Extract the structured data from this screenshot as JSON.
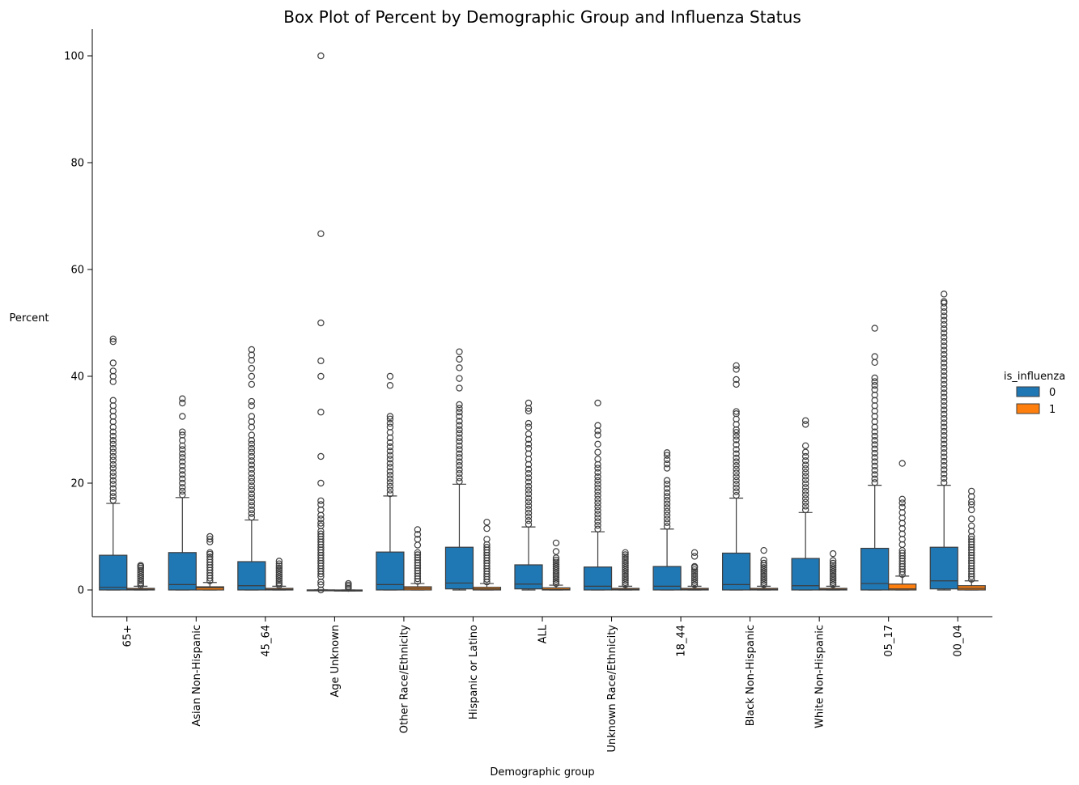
{
  "chart_data": {
    "type": "boxplot",
    "title": "Box Plot of Percent by Demographic Group and Influenza Status",
    "xlabel": "Demographic group",
    "ylabel": "Percent",
    "ylim": [
      -5,
      105
    ],
    "yticks": [
      0,
      20,
      40,
      60,
      80,
      100
    ],
    "grid": false,
    "legend": {
      "title": "is_influenza",
      "position": "right",
      "entries": [
        "0",
        "1"
      ]
    },
    "categories": [
      "65+",
      "Asian Non-Hispanic",
      "45_64",
      "Age Unknown",
      "Other Race/Ethnicity",
      "Hispanic or Latino",
      "ALL",
      "Unknown Race/Ethnicity",
      "18_44",
      "Black Non-Hispanic",
      "White Non-Hispanic",
      "05_17",
      "00_04"
    ],
    "series": [
      {
        "name": "0",
        "color": "#1f77b4",
        "boxes": [
          {
            "q1": 0,
            "median": 0.5,
            "q3": 6.5,
            "whisker_low": 0,
            "whisker_high": 16.2,
            "fliers": [
              16.8,
              17.5,
              18.2,
              19,
              19.8,
              20.5,
              21.3,
              22,
              22.8,
              23.5,
              24.3,
              25,
              25.8,
              26.5,
              27.3,
              28,
              28.8,
              29.6,
              30.5,
              31.5,
              32.5,
              33.5,
              34.5,
              35.5,
              39,
              40,
              41,
              42.5,
              46.5,
              47
            ]
          },
          {
            "q1": 0,
            "median": 1,
            "q3": 7,
            "whisker_low": 0,
            "whisker_high": 17.3,
            "fliers": [
              17.8,
              18.5,
              19.2,
              20,
              20.8,
              21.6,
              22.4,
              23.2,
              24,
              24.8,
              25.5,
              26.3,
              27,
              28,
              29,
              29.6,
              32.5,
              35,
              35.8
            ]
          },
          {
            "q1": 0,
            "median": 0.8,
            "q3": 5.3,
            "whisker_low": 0,
            "whisker_high": 13.1,
            "fliers": [
              13.6,
              14.3,
              15,
              15.8,
              16.5,
              17.3,
              18,
              18.8,
              19.5,
              20.3,
              21,
              21.8,
              22.6,
              23.4,
              24.2,
              25,
              25.8,
              26.5,
              27.3,
              28,
              29,
              30.5,
              31.5,
              32.5,
              34.5,
              35.3,
              38.5,
              40,
              41.5,
              43,
              44,
              45
            ]
          },
          {
            "q1": 0,
            "median": 0,
            "q3": 0,
            "whisker_low": 0,
            "whisker_high": 0,
            "fliers": [
              0,
              1,
              1.5,
              2.5,
              3,
              3.5,
              4,
              4.5,
              5,
              5.5,
              6,
              6.5,
              7,
              7.5,
              8,
              8.5,
              9,
              9.5,
              10,
              10.5,
              11,
              12,
              12.5,
              13.3,
              14,
              15,
              16,
              16.7,
              20,
              25,
              33.3,
              40,
              42.9,
              50,
              66.7,
              100
            ]
          },
          {
            "q1": 0,
            "median": 1,
            "q3": 7.1,
            "whisker_low": 0,
            "whisker_high": 17.6,
            "fliers": [
              18,
              18.7,
              19.4,
              20.1,
              20.8,
              21.5,
              22.2,
              23,
              23.7,
              24.5,
              25.2,
              26,
              26.8,
              27.6,
              28.5,
              29.5,
              30.5,
              31.2,
              32,
              32.5,
              38.3,
              40
            ]
          },
          {
            "q1": 0.2,
            "median": 1.3,
            "q3": 8,
            "whisker_low": 0,
            "whisker_high": 19.8,
            "fliers": [
              20.3,
              21,
              21.8,
              22.5,
              23.3,
              24,
              24.8,
              25.5,
              26.3,
              27,
              27.8,
              28.5,
              29.3,
              30,
              30.8,
              31.6,
              32.5,
              33.3,
              34,
              34.7,
              37.8,
              39.6,
              41.6,
              43.2,
              44.6
            ]
          },
          {
            "q1": 0.2,
            "median": 1.1,
            "q3": 4.7,
            "whisker_low": 0,
            "whisker_high": 11.8,
            "fliers": [
              12.3,
              13,
              13.7,
              14.4,
              15.1,
              15.8,
              16.5,
              17.2,
              18,
              18.7,
              19.4,
              20.2,
              21,
              21.8,
              22.6,
              23.5,
              24.5,
              25.5,
              26.5,
              27.3,
              28.2,
              29.2,
              30.5,
              31.2,
              33.5,
              34,
              35
            ]
          },
          {
            "q1": 0,
            "median": 0.7,
            "q3": 4.3,
            "whisker_low": 0,
            "whisker_high": 10.9,
            "fliers": [
              11.4,
              12.1,
              12.8,
              13.5,
              14.2,
              14.9,
              15.6,
              16.3,
              17,
              17.7,
              18.4,
              19.1,
              19.8,
              20.5,
              21.2,
              22,
              22.8,
              23.5,
              24.5,
              25.8,
              27.3,
              29,
              29.8,
              30.8,
              35
            ]
          },
          {
            "q1": 0,
            "median": 0.7,
            "q3": 4.4,
            "whisker_low": 0,
            "whisker_high": 11.4,
            "fliers": [
              11.9,
              12.6,
              13.3,
              14,
              14.7,
              15.4,
              16.1,
              16.8,
              17.5,
              18.2,
              19,
              19.8,
              20.5,
              22.8,
              23.6,
              24.4,
              25.2,
              25.7
            ]
          },
          {
            "q1": 0,
            "median": 1,
            "q3": 6.9,
            "whisker_low": 0,
            "whisker_high": 17.2,
            "fliers": [
              17.7,
              18.4,
              19.1,
              19.8,
              20.5,
              21.2,
              21.9,
              22.6,
              23.3,
              24,
              24.7,
              25.5,
              26.3,
              27.2,
              28.1,
              28.8,
              29.5,
              30,
              31,
              32,
              33,
              33.4,
              38.5,
              39.4,
              41.3,
              42
            ]
          },
          {
            "q1": 0,
            "median": 0.8,
            "q3": 5.9,
            "whisker_low": 0,
            "whisker_high": 14.5,
            "fliers": [
              15,
              15.7,
              16.4,
              17.1,
              17.8,
              18.5,
              19.2,
              19.9,
              20.6,
              21.3,
              22,
              22.7,
              23.4,
              24.2,
              25,
              25.8,
              27,
              31,
              31.7
            ]
          },
          {
            "q1": 0,
            "median": 1.2,
            "q3": 7.8,
            "whisker_low": 0,
            "whisker_high": 19.6,
            "fliers": [
              20.1,
              20.8,
              21.6,
              22.4,
              23.2,
              24,
              24.8,
              25.6,
              26.4,
              27.2,
              28,
              28.8,
              29.6,
              30.5,
              31.5,
              32.5,
              33.5,
              34.5,
              35.5,
              36.5,
              37.5,
              38.3,
              39,
              39.7,
              42.6,
              43.7,
              49
            ]
          },
          {
            "q1": 0.2,
            "median": 1.7,
            "q3": 8,
            "whisker_low": 0,
            "whisker_high": 19.6,
            "fliers": [
              20.1,
              20.9,
              21.7,
              22.5,
              23.3,
              24.1,
              24.9,
              25.7,
              26.5,
              27.3,
              28.1,
              28.9,
              29.7,
              30.5,
              31.3,
              32.1,
              32.9,
              33.7,
              34.5,
              35.3,
              36.1,
              36.9,
              37.7,
              38.5,
              39.3,
              40.1,
              40.9,
              41.7,
              42.5,
              43.3,
              44.1,
              44.9,
              45.7,
              46.5,
              47.3,
              48.1,
              48.9,
              49.7,
              50.5,
              51.3,
              52.1,
              52.9,
              53.7,
              54,
              55.4
            ]
          }
        ]
      },
      {
        "name": "1",
        "color": "#ff7f0e",
        "boxes": [
          {
            "q1": 0,
            "median": 0.1,
            "q3": 0.3,
            "whisker_low": 0,
            "whisker_high": 0.7,
            "fliers": [
              0.9,
              1.3,
              1.7,
              2.1,
              2.5,
              2.9,
              3.3,
              3.7,
              4.1,
              4.4,
              4.6
            ]
          },
          {
            "q1": 0,
            "median": 0.4,
            "q3": 0.6,
            "whisker_low": 0,
            "whisker_high": 1.4,
            "fliers": [
              1.7,
              2.2,
              2.7,
              3.2,
              3.7,
              4.2,
              4.7,
              5.2,
              5.7,
              6.2,
              6.7,
              7,
              9,
              9.5,
              10
            ]
          },
          {
            "q1": 0,
            "median": 0.1,
            "q3": 0.3,
            "whisker_low": 0,
            "whisker_high": 0.7,
            "fliers": [
              0.9,
              1.3,
              1.7,
              2.1,
              2.5,
              2.9,
              3.3,
              3.7,
              4.1,
              4.5,
              4.9,
              5.4
            ]
          },
          {
            "q1": -0.2,
            "median": -0.1,
            "q3": 0,
            "whisker_low": -0.2,
            "whisker_high": 0,
            "fliers": [
              0.3,
              0.6,
              0.9,
              1.2
            ]
          },
          {
            "q1": 0,
            "median": 0.3,
            "q3": 0.6,
            "whisker_low": 0,
            "whisker_high": 1.2,
            "fliers": [
              1.6,
              2.1,
              2.6,
              3.1,
              3.6,
              4.1,
              4.6,
              5.1,
              5.6,
              6.1,
              6.6,
              7,
              8.4,
              9.5,
              10.4,
              11.3
            ]
          },
          {
            "q1": 0,
            "median": 0.2,
            "q3": 0.5,
            "whisker_low": 0,
            "whisker_high": 1.2,
            "fliers": [
              1.5,
              2,
              2.5,
              3,
              3.5,
              4,
              4.5,
              5,
              5.5,
              6,
              6.5,
              7,
              7.5,
              8,
              8.5,
              9.5,
              11.5,
              12.7
            ]
          },
          {
            "q1": 0,
            "median": 0.1,
            "q3": 0.4,
            "whisker_low": 0,
            "whisker_high": 0.9,
            "fliers": [
              1.2,
              1.6,
              2,
              2.4,
              2.8,
              3.2,
              3.6,
              4,
              4.4,
              4.8,
              5.2,
              5.6,
              6,
              7.2,
              8.8
            ]
          },
          {
            "q1": 0,
            "median": 0.1,
            "q3": 0.3,
            "whisker_low": 0,
            "whisker_high": 0.7,
            "fliers": [
              1,
              1.4,
              1.8,
              2.2,
              2.6,
              3,
              3.4,
              3.8,
              4.2,
              4.6,
              5,
              5.4,
              5.8,
              6.2,
              6.6,
              7
            ]
          },
          {
            "q1": 0,
            "median": 0.1,
            "q3": 0.3,
            "whisker_low": 0,
            "whisker_high": 0.7,
            "fliers": [
              1,
              1.4,
              1.8,
              2.2,
              2.6,
              3,
              3.4,
              3.8,
              4.2,
              4.4,
              6.3,
              7
            ]
          },
          {
            "q1": 0,
            "median": 0.1,
            "q3": 0.3,
            "whisker_low": 0,
            "whisker_high": 0.7,
            "fliers": [
              1,
              1.4,
              1.8,
              2.2,
              2.6,
              3,
              3.4,
              3.8,
              4.2,
              4.6,
              5,
              5.6,
              7.4
            ]
          },
          {
            "q1": 0,
            "median": 0.1,
            "q3": 0.3,
            "whisker_low": 0,
            "whisker_high": 0.7,
            "fliers": [
              1,
              1.4,
              1.8,
              2.2,
              2.6,
              3,
              3.4,
              3.8,
              4.2,
              4.6,
              5,
              5.5,
              6.8
            ]
          },
          {
            "q1": 0,
            "median": 0.2,
            "q3": 1.1,
            "whisker_low": 0,
            "whisker_high": 2.6,
            "fliers": [
              2.9,
              3.4,
              3.9,
              4.4,
              4.9,
              5.4,
              5.9,
              6.4,
              6.9,
              7.4,
              8.5,
              9.5,
              10.5,
              11.5,
              12.5,
              13.5,
              14.5,
              15.5,
              16.3,
              17,
              23.7
            ]
          },
          {
            "q1": 0,
            "median": 0.3,
            "q3": 0.8,
            "whisker_low": 0,
            "whisker_high": 1.7,
            "fliers": [
              2,
              2.5,
              3,
              3.5,
              4,
              4.5,
              5,
              5.5,
              6,
              6.5,
              7,
              7.5,
              8,
              8.5,
              9,
              9.5,
              10,
              11,
              12,
              13.3,
              15,
              16,
              16.5,
              17.5,
              18.5
            ]
          }
        ]
      }
    ]
  }
}
